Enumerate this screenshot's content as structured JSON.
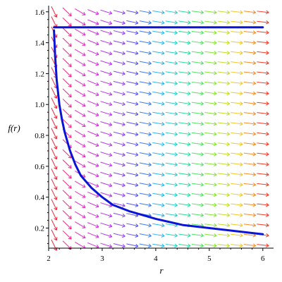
{
  "chart_data": {
    "type": "line",
    "title": "",
    "xlabel": "r",
    "ylabel": "f(r)",
    "xlim": [
      2.0,
      6.2
    ],
    "ylim": [
      0.07,
      1.64
    ],
    "xticks": [
      "2",
      "3",
      "4",
      "5",
      "6"
    ],
    "xtick_values": [
      2,
      3,
      4,
      5,
      6
    ],
    "yticks": [
      "0.2",
      "0.4",
      "0.6",
      "0.8",
      "1.0",
      "1.2",
      "1.4",
      "1.6"
    ],
    "ytick_values": [
      0.2,
      0.4,
      0.6,
      0.8,
      1.0,
      1.2,
      1.4,
      1.6
    ],
    "grid": false,
    "legend": "none",
    "colors": {
      "curve": "#0a14d6",
      "axis": "#000000"
    },
    "direction_field": {
      "x_range": [
        2.1,
        6.0
      ],
      "x_steps": 17,
      "y_range": [
        0.09,
        1.6
      ],
      "y_steps": 24,
      "color_scheme": "rainbow from red (left) through magenta/purple to blue, cyan, green, yellow, orange-red (right)"
    },
    "series": [
      {
        "x": [
          2.1,
          2.12,
          2.15,
          2.2,
          2.25,
          2.3,
          2.4,
          2.5,
          2.6,
          2.8,
          3.0,
          3.2,
          3.5,
          4.0,
          4.5,
          5.0,
          5.5,
          6.0
        ],
        "y": [
          1.48,
          1.32,
          1.16,
          1.0,
          0.9,
          0.82,
          0.7,
          0.61,
          0.54,
          0.46,
          0.4,
          0.35,
          0.31,
          0.26,
          0.22,
          0.2,
          0.18,
          0.16
        ]
      },
      {
        "x": [
          2.1,
          6.0
        ],
        "y": [
          1.5,
          1.5
        ]
      }
    ]
  }
}
